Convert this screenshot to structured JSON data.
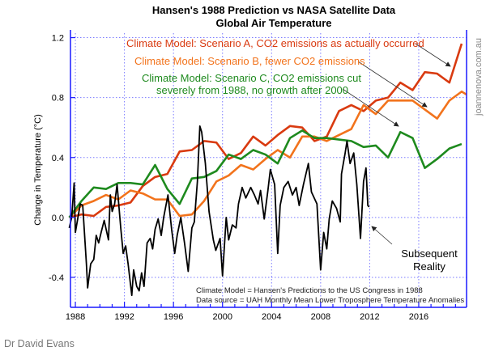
{
  "chart_data": {
    "type": "line",
    "title": "Hansen's 1988 Prediction vs NASA Satellite Data",
    "subtitle": "Global Air Temperature",
    "xlabel": "",
    "ylabel": "Change in Temperature (°C)",
    "xlim": [
      1987.6,
      2019.9
    ],
    "ylim": [
      -0.6,
      1.23
    ],
    "x_ticks": [
      1988,
      1992,
      1996,
      2000,
      2004,
      2008,
      2012,
      2016
    ],
    "x_tick_labels": [
      "1988",
      "1992",
      "1996",
      "2000",
      "2004",
      "2008",
      "2012",
      "2016"
    ],
    "y_ticks": [
      -0.4,
      0.0,
      0.4,
      0.8,
      1.2
    ],
    "y_tick_labels": [
      "-0.4",
      "0.0",
      "0.4",
      "0.8",
      "1.2"
    ],
    "grid": true,
    "colors": {
      "axis": "#1a1aff",
      "grid": "#7a7aff",
      "scenario_a": "#d93a10",
      "scenario_b": "#f2731c",
      "scenario_c": "#1e8a1e",
      "uah": "#000000",
      "arrow": "#333333"
    },
    "series": [
      {
        "key": "scenario_a",
        "x_start": 1987.5,
        "x_step": 1,
        "values": [
          0.0,
          0.02,
          0.01,
          0.07,
          0.08,
          0.1,
          0.21,
          0.27,
          0.29,
          0.44,
          0.45,
          0.51,
          0.5,
          0.39,
          0.43,
          0.54,
          0.48,
          0.55,
          0.61,
          0.6,
          0.51,
          0.54,
          0.71,
          0.75,
          0.71,
          0.78,
          0.8,
          0.9,
          0.85,
          0.97,
          0.96,
          0.9,
          1.16
        ]
      },
      {
        "key": "scenario_b",
        "x_start": 1987.5,
        "x_step": 1,
        "values": [
          0.0,
          0.08,
          0.11,
          0.15,
          0.12,
          0.18,
          0.16,
          0.12,
          0.12,
          0.01,
          0.02,
          0.11,
          0.24,
          0.28,
          0.35,
          0.32,
          0.39,
          0.45,
          0.4,
          0.54,
          0.54,
          0.51,
          0.55,
          0.59,
          0.75,
          0.69,
          0.78,
          0.78,
          0.78,
          0.72,
          0.66,
          0.78,
          0.84,
          0.82
        ]
      },
      {
        "key": "scenario_c",
        "x_start": 1987.5,
        "x_step": 1,
        "values": [
          0.0,
          0.11,
          0.2,
          0.19,
          0.23,
          0.23,
          0.22,
          0.35,
          0.19,
          0.09,
          0.26,
          0.27,
          0.31,
          0.42,
          0.39,
          0.45,
          0.42,
          0.36,
          0.53,
          0.58,
          0.53,
          0.53,
          0.52,
          0.51,
          0.47,
          0.48,
          0.4,
          0.57,
          0.53,
          0.33,
          0.39,
          0.46,
          0.49
        ]
      },
      {
        "key": "uah",
        "points": [
          [
            1987.5,
            -0.07
          ],
          [
            1987.7,
            0.0
          ],
          [
            1987.9,
            0.23
          ],
          [
            1988.0,
            -0.1
          ],
          [
            1988.4,
            0.09
          ],
          [
            1988.6,
            0.08
          ],
          [
            1988.9,
            -0.31
          ],
          [
            1989.0,
            -0.47
          ],
          [
            1989.25,
            -0.31
          ],
          [
            1989.5,
            -0.28
          ],
          [
            1989.7,
            -0.12
          ],
          [
            1989.9,
            -0.17
          ],
          [
            1990.1,
            -0.1
          ],
          [
            1990.35,
            -0.02
          ],
          [
            1990.7,
            -0.15
          ],
          [
            1990.85,
            0.15
          ],
          [
            1991.0,
            0.04
          ],
          [
            1991.2,
            0.09
          ],
          [
            1991.4,
            0.22
          ],
          [
            1991.7,
            -0.07
          ],
          [
            1991.9,
            -0.24
          ],
          [
            1992.1,
            -0.19
          ],
          [
            1992.3,
            -0.31
          ],
          [
            1992.6,
            -0.52
          ],
          [
            1992.75,
            -0.35
          ],
          [
            1993.0,
            -0.46
          ],
          [
            1993.2,
            -0.49
          ],
          [
            1993.4,
            -0.37
          ],
          [
            1993.6,
            -0.46
          ],
          [
            1993.85,
            -0.17
          ],
          [
            1994.1,
            -0.14
          ],
          [
            1994.3,
            -0.21
          ],
          [
            1994.5,
            -0.08
          ],
          [
            1994.75,
            -0.01
          ],
          [
            1995.0,
            -0.12
          ],
          [
            1995.2,
            0.0
          ],
          [
            1995.55,
            0.15
          ],
          [
            1995.85,
            -0.08
          ],
          [
            1996.1,
            -0.24
          ],
          [
            1996.3,
            -0.12
          ],
          [
            1996.6,
            0.0
          ],
          [
            1996.9,
            -0.17
          ],
          [
            1997.2,
            -0.36
          ],
          [
            1997.5,
            -0.07
          ],
          [
            1997.7,
            -0.03
          ],
          [
            1997.95,
            0.24
          ],
          [
            1998.15,
            0.61
          ],
          [
            1998.3,
            0.57
          ],
          [
            1998.6,
            0.36
          ],
          [
            1998.9,
            0.04
          ],
          [
            1999.25,
            -0.15
          ],
          [
            1999.45,
            -0.22
          ],
          [
            1999.8,
            -0.14
          ],
          [
            2000.0,
            -0.39
          ],
          [
            2000.3,
            0.0
          ],
          [
            2000.5,
            -0.15
          ],
          [
            2000.8,
            -0.05
          ],
          [
            2001.1,
            -0.07
          ],
          [
            2001.3,
            0.09
          ],
          [
            2001.6,
            0.2
          ],
          [
            2001.9,
            0.13
          ],
          [
            2002.3,
            0.2
          ],
          [
            2002.6,
            0.15
          ],
          [
            2002.9,
            0.09
          ],
          [
            2003.1,
            0.18
          ],
          [
            2003.4,
            -0.01
          ],
          [
            2003.7,
            0.18
          ],
          [
            2003.9,
            0.32
          ],
          [
            2004.25,
            0.22
          ],
          [
            2004.5,
            -0.24
          ],
          [
            2004.7,
            0.08
          ],
          [
            2005.0,
            0.2
          ],
          [
            2005.35,
            0.24
          ],
          [
            2005.7,
            0.15
          ],
          [
            2006.0,
            0.2
          ],
          [
            2006.25,
            0.08
          ],
          [
            2006.6,
            0.22
          ],
          [
            2007.0,
            0.36
          ],
          [
            2007.25,
            0.17
          ],
          [
            2007.7,
            0.09
          ],
          [
            2008.0,
            -0.35
          ],
          [
            2008.25,
            -0.1
          ],
          [
            2008.5,
            -0.21
          ],
          [
            2008.7,
            -0.01
          ],
          [
            2008.95,
            0.11
          ],
          [
            2009.3,
            0.06
          ],
          [
            2009.6,
            -0.03
          ],
          [
            2009.7,
            0.29
          ],
          [
            2010.0,
            0.43
          ],
          [
            2010.15,
            0.51
          ],
          [
            2010.4,
            0.36
          ],
          [
            2010.7,
            0.43
          ],
          [
            2010.95,
            0.22
          ],
          [
            2011.25,
            -0.14
          ],
          [
            2011.5,
            0.24
          ],
          [
            2011.7,
            0.33
          ],
          [
            2011.85,
            0.08
          ],
          [
            2011.95,
            0.07
          ]
        ]
      }
    ],
    "annotations": {
      "scenario_a": "Climate Model: Scenario A, CO2 emissions as actually occurred",
      "scenario_b": "Climate Model: Scenario B, fewer CO2 emissions",
      "scenario_c_line1": "Climate Model: Scenario C, CO2 emissions cut",
      "scenario_c_line2": "severely from 1988, no growth after 2000",
      "uah_line1": "Subsequent",
      "uah_line2": "Reality",
      "footnote1": "Climate Model = Hansen's Predictions to the US Congress in 1988",
      "footnote2": "Data source = UAH Monthly Mean Lower Troposphere Temperature Anomalies"
    }
  },
  "watermark": "joannenova.com.au",
  "credit": "Dr David Evans"
}
